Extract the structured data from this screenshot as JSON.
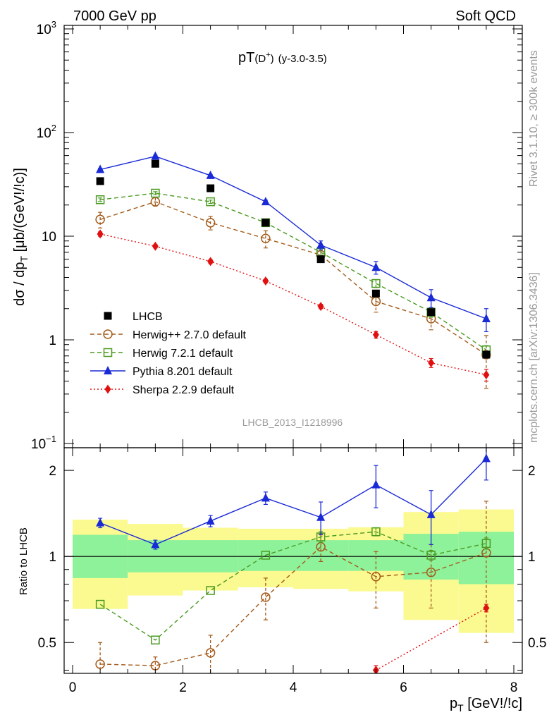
{
  "header": {
    "left": "7000 GeV pp",
    "right": "Soft QCD"
  },
  "side_labels": {
    "rivet": "Rivet 3.1.10, ≥ 300k events",
    "mcplots": "mcplots.cern.ch [arXiv:1306.3436]"
  },
  "main_title": {
    "main": "pT",
    "particle_base": "(D",
    "particle_sup": "+",
    "particle_close": ")",
    "range": "(y-3.0-3.5)"
  },
  "analysis_id": "LHCB_2013_I1218996",
  "y_label_main": {
    "a": "dσ / dp",
    "sub": "T",
    "b": " [μb/(GeV!/!c)]"
  },
  "y_label_ratio": "Ratio to LHCB",
  "x_label": {
    "a": "p",
    "sub": "T",
    "b": " [GeV!/!c]"
  },
  "colors": {
    "lhcb": "#000000",
    "herwigpp": "#a35a1a",
    "herwig7": "#4b9a22",
    "pythia": "#1a2ad6",
    "sherpa": "#e01010",
    "band_inner": "#8ef29a",
    "band_outer": "#fafa90"
  },
  "chart_data": {
    "type": "scatter",
    "x_ticks": [
      "0",
      "2",
      "4",
      "6",
      "8"
    ],
    "xlim": [
      0,
      8
    ],
    "main_panel": {
      "y_scale": "log",
      "ylim": [
        0.1,
        1000
      ],
      "y_ticks": [
        {
          "base": "10",
          "exp": "−1",
          "plain": ""
        },
        {
          "base": "",
          "exp": "",
          "plain": "1"
        },
        {
          "base": "",
          "exp": "",
          "plain": "10"
        },
        {
          "base": "10",
          "exp": "2",
          "plain": ""
        },
        {
          "base": "10",
          "exp": "3",
          "plain": ""
        }
      ],
      "legend_position": "bottom-left",
      "series": [
        {
          "key": "lhcb",
          "name": "LHCB",
          "marker": "filled-square",
          "line": "none",
          "x": [
            0.5,
            1.5,
            2.5,
            3.5,
            4.5,
            5.5,
            6.5,
            7.5
          ],
          "y": [
            34,
            50,
            29,
            13.5,
            6.0,
            2.8,
            1.85,
            0.72
          ],
          "err": [
            0,
            0,
            0,
            0,
            0,
            0,
            0,
            0
          ]
        },
        {
          "key": "herwigpp",
          "name": "Herwig++ 2.7.0 default",
          "marker": "open-circle",
          "line": "dashed",
          "x": [
            0.5,
            1.5,
            2.5,
            3.5,
            4.5,
            5.5,
            6.5,
            7.5
          ],
          "y": [
            14.5,
            21.5,
            13.5,
            9.5,
            6.6,
            2.35,
            1.6,
            0.72
          ],
          "err": [
            2.5,
            2.0,
            2.0,
            1.8,
            0.6,
            0.5,
            0.35,
            0.38
          ]
        },
        {
          "key": "herwig7",
          "name": "Herwig 7.2.1 default",
          "marker": "open-square",
          "line": "dashed",
          "x": [
            0.5,
            1.5,
            2.5,
            3.5,
            4.5,
            5.5,
            6.5,
            7.5
          ],
          "y": [
            22.5,
            26,
            21.5,
            13.5,
            7.0,
            3.5,
            1.85,
            0.8
          ],
          "err": [
            0.9,
            0.9,
            0.8,
            0.6,
            0.4,
            0.3,
            0.2,
            0.08
          ]
        },
        {
          "key": "pythia",
          "name": "Pythia 8.201 default",
          "marker": "filled-triangle",
          "line": "solid",
          "x": [
            0.5,
            1.5,
            2.5,
            3.5,
            4.5,
            5.5,
            6.5,
            7.5
          ],
          "y": [
            44,
            59,
            38.5,
            21.5,
            8.2,
            5.0,
            2.55,
            1.6
          ],
          "err": [
            1.2,
            1.5,
            1.0,
            0.8,
            0.8,
            0.7,
            0.5,
            0.4
          ]
        },
        {
          "key": "sherpa",
          "name": "Sherpa 2.2.9 default",
          "marker": "filled-diamond",
          "line": "dotted",
          "x": [
            0.5,
            1.5,
            2.5,
            3.5,
            4.5,
            5.5,
            6.5,
            7.5
          ],
          "y": [
            10.5,
            8.0,
            5.7,
            3.7,
            2.1,
            1.12,
            0.6,
            0.46
          ],
          "err": [
            0.5,
            0.3,
            0.25,
            0.15,
            0.1,
            0.08,
            0.06,
            0.06
          ]
        }
      ]
    },
    "ratio_panel": {
      "y_scale": "log",
      "ylim": [
        0.39,
        2.4
      ],
      "y_ticks": [
        "0.5",
        "1",
        "2"
      ],
      "reference_line": 1,
      "bands": [
        {
          "x0": 0,
          "x1": 1,
          "inner": [
            0.84,
            1.19
          ],
          "outer": [
            0.655,
            1.345
          ]
        },
        {
          "x0": 1,
          "x1": 2,
          "inner": [
            0.88,
            1.14
          ],
          "outer": [
            0.73,
            1.3
          ]
        },
        {
          "x0": 2,
          "x1": 3,
          "inner": [
            0.88,
            1.14
          ],
          "outer": [
            0.76,
            1.26
          ]
        },
        {
          "x0": 3,
          "x1": 4,
          "inner": [
            0.89,
            1.14
          ],
          "outer": [
            0.78,
            1.25
          ]
        },
        {
          "x0": 4,
          "x1": 5,
          "inner": [
            0.89,
            1.14
          ],
          "outer": [
            0.77,
            1.25
          ]
        },
        {
          "x0": 5,
          "x1": 6,
          "inner": [
            0.89,
            1.14
          ],
          "outer": [
            0.755,
            1.265
          ]
        },
        {
          "x0": 6,
          "x1": 7,
          "inner": [
            0.83,
            1.2
          ],
          "outer": [
            0.6,
            1.43
          ]
        },
        {
          "x0": 7,
          "x1": 8,
          "inner": [
            0.8,
            1.22
          ],
          "outer": [
            0.54,
            1.46
          ]
        }
      ],
      "series": [
        {
          "key": "herwigpp",
          "name": "Herwig++ 2.7.0 default",
          "x": [
            0.5,
            1.5,
            2.5,
            3.5,
            4.5,
            5.5,
            6.5,
            7.5
          ],
          "y": [
            0.42,
            0.415,
            0.46,
            0.72,
            1.08,
            0.85,
            0.88,
            1.03
          ],
          "err": [
            0.08,
            0.03,
            0.07,
            0.12,
            0.12,
            0.19,
            0.22,
            0.53
          ]
        },
        {
          "key": "herwig7",
          "name": "Herwig 7.2.1 default",
          "x": [
            0.5,
            1.5,
            2.5,
            3.5,
            4.5,
            5.5,
            6.5,
            7.5
          ],
          "y": [
            0.68,
            0.51,
            0.76,
            1.01,
            1.17,
            1.22,
            1.01,
            1.11
          ],
          "err": [
            0,
            0,
            0,
            0,
            0.05,
            0.04,
            0.04,
            0.05
          ]
        },
        {
          "key": "pythia",
          "name": "Pythia 8.201 default",
          "x": [
            0.5,
            1.5,
            2.5,
            3.5,
            4.5,
            5.5,
            6.5,
            7.5
          ],
          "y": [
            1.31,
            1.1,
            1.33,
            1.6,
            1.37,
            1.78,
            1.4,
            2.2
          ],
          "err": [
            0.05,
            0.04,
            0.06,
            0.08,
            0.18,
            0.3,
            0.3,
            0.35
          ]
        },
        {
          "key": "sherpa",
          "name": "Sherpa 2.2.9 default",
          "x": [
            5.5,
            7.5
          ],
          "y": [
            0.4,
            0.66
          ],
          "err": [
            0.015,
            0.02
          ]
        }
      ]
    }
  }
}
